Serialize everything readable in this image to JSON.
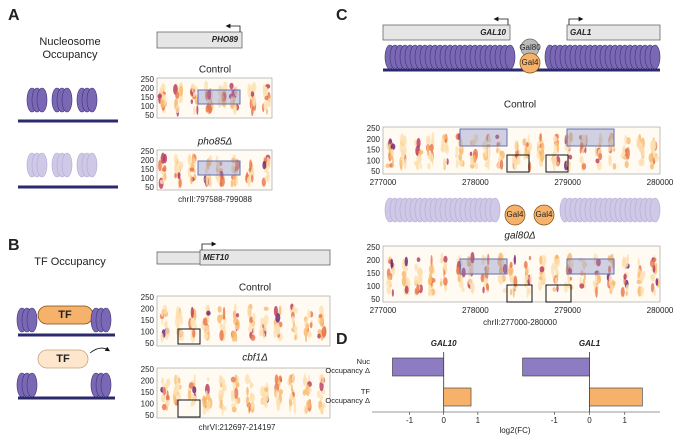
{
  "panels": {
    "A": {
      "letter": "A",
      "title": "Nucleosome Occupancy",
      "gene": "PHO89",
      "cond1": "Control",
      "cond2": "pho85Δ",
      "region": "chrII:797588-799088",
      "yticks": [
        "250",
        "200",
        "150",
        "100",
        "50"
      ]
    },
    "B": {
      "letter": "B",
      "title": "TF Occupancy",
      "tf": "TF",
      "gene": "MET10",
      "cond1": "Control",
      "cond2": "cbf1Δ",
      "region": "chrVI:212697-214197",
      "yticks": [
        "250",
        "200",
        "150",
        "100",
        "50"
      ]
    },
    "C": {
      "letter": "C",
      "gene1": "GAL10",
      "gene2": "GAL1",
      "gal80": "Gal80",
      "gal4": "Gal4",
      "cond1": "Control",
      "cond2": "gal80Δ",
      "region": "chrII:277000-280000",
      "yticks": [
        "250",
        "200",
        "150",
        "100",
        "50"
      ],
      "xticks": [
        "277000",
        "278000",
        "279000",
        "280000"
      ]
    },
    "D": {
      "letter": "D",
      "xlabel": "log2(FC)"
    }
  },
  "chart_data": [
    {
      "type": "hbar",
      "title": "GAL10",
      "categories": [
        "Nuc Occupancy Δ",
        "TF Occupancy Δ"
      ],
      "values": [
        -1.5,
        0.8
      ],
      "colors": [
        "#8e7cc3",
        "#f6b26b"
      ],
      "xlim": [
        -2.1,
        2.0
      ],
      "xticks": [
        -1,
        0,
        1
      ]
    },
    {
      "type": "hbar",
      "title": "GAL1",
      "categories": [
        "Nuc Occupancy Δ",
        "TF Occupancy Δ"
      ],
      "values": [
        -1.9,
        1.5
      ],
      "colors": [
        "#8e7cc3",
        "#f6b26b"
      ],
      "xlim": [
        -2.2,
        2.0
      ],
      "xticks": [
        -1,
        0,
        1
      ]
    }
  ]
}
